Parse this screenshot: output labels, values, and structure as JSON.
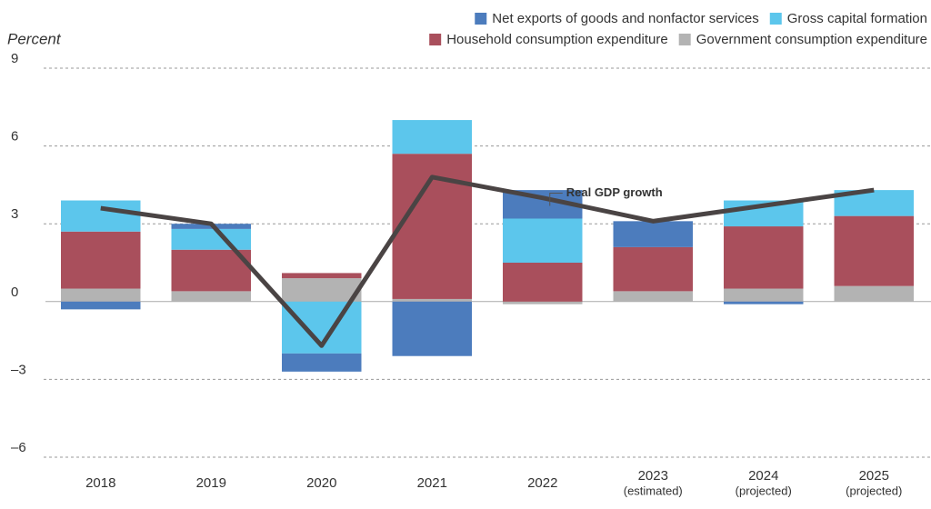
{
  "chart_data": {
    "type": "bar",
    "stacked": true,
    "y_label": "Percent",
    "categories": [
      "2018",
      "2019",
      "2020",
      "2021",
      "2022",
      "2023",
      "2024",
      "2025"
    ],
    "category_sublabels": [
      null,
      null,
      null,
      null,
      null,
      "(estimated)",
      "(projected)",
      "(projected)"
    ],
    "ylim": [
      -6,
      9
    ],
    "yticks": [
      {
        "value": -6,
        "label": "–6"
      },
      {
        "value": -3,
        "label": "–3"
      },
      0,
      3,
      6,
      9
    ],
    "grid": true,
    "series": [
      {
        "name": "Government consumption expenditure",
        "color": "#b3b3b3",
        "values": [
          0.5,
          0.4,
          0.9,
          0.1,
          -0.1,
          0.4,
          0.5,
          0.6
        ]
      },
      {
        "name": "Household consumption expenditure",
        "color": "#a94f5c",
        "values": [
          2.2,
          1.6,
          0.2,
          5.6,
          1.5,
          1.7,
          2.4,
          2.7
        ]
      },
      {
        "name": "Gross capital formation",
        "color": "#5cc6ec",
        "values": [
          1.2,
          0.8,
          -2.0,
          1.3,
          1.7,
          0.0,
          1.0,
          1.0
        ]
      },
      {
        "name": "Net exports of goods and nonfactor services",
        "color": "#4c7cbd",
        "values": [
          -0.3,
          0.2,
          -0.7,
          -2.1,
          1.1,
          1.0,
          -0.1,
          0.0
        ]
      }
    ],
    "line": {
      "type": "line",
      "name": "Real GDP growth",
      "color": "#4a4444",
      "values": [
        3.6,
        3.0,
        -1.7,
        4.8,
        4.0,
        3.1,
        3.7,
        4.3
      ]
    }
  }
}
